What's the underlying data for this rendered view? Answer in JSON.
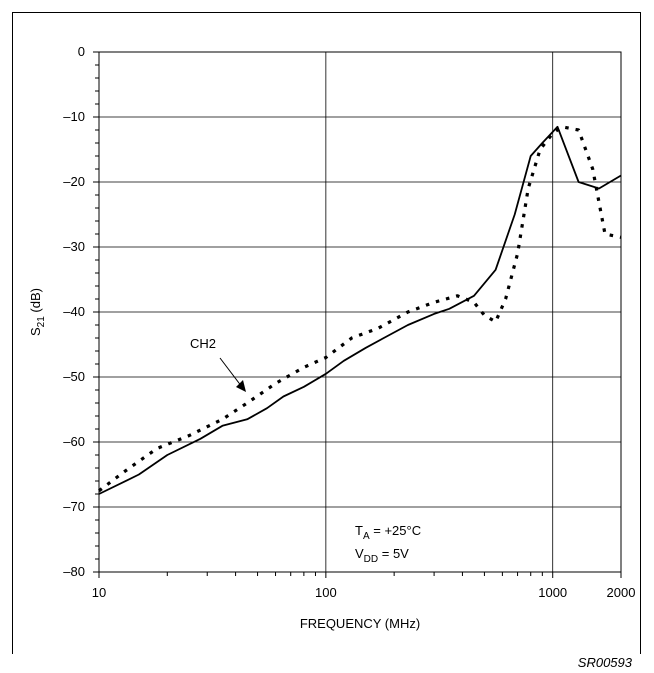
{
  "figure_id": "SR00593",
  "chart_data": {
    "type": "line",
    "xlabel": "FREQUENCY (MHz)",
    "ylabel_main": "S",
    "ylabel_sub": "21",
    "ylabel_suffix": " (dB)",
    "xscale": "log",
    "xlim": [
      10,
      2000
    ],
    "ylim": [
      -80,
      0
    ],
    "grid": true,
    "x_ticks": [
      {
        "value": 10,
        "label": "10"
      },
      {
        "value": 100,
        "label": "100"
      },
      {
        "value": 1000,
        "label": "1000"
      },
      {
        "value": 2000,
        "label": "2000"
      }
    ],
    "y_ticks": [
      {
        "value": 0,
        "label": "0"
      },
      {
        "value": -10,
        "label": "–10"
      },
      {
        "value": -20,
        "label": "–20"
      },
      {
        "value": -30,
        "label": "–30"
      },
      {
        "value": -40,
        "label": "–40"
      },
      {
        "value": -50,
        "label": "–50"
      },
      {
        "value": -60,
        "label": "–60"
      },
      {
        "value": -70,
        "label": "–70"
      },
      {
        "value": -80,
        "label": "–80"
      }
    ],
    "series": [
      {
        "style": "solid",
        "x": [
          10,
          15,
          20,
          28,
          35,
          45,
          55,
          65,
          80,
          100,
          120,
          150,
          180,
          230,
          300,
          350,
          450,
          560,
          680,
          800,
          900,
          1050,
          1300,
          1600,
          2000
        ],
        "y": [
          -68,
          -65,
          -62,
          -59.5,
          -57.5,
          -56.5,
          -54.8,
          -53,
          -51.5,
          -49.5,
          -47.5,
          -45.5,
          -44,
          -42,
          -40.3,
          -39.5,
          -37.5,
          -33.5,
          -25,
          -16,
          -14,
          -11.5,
          -20,
          -21,
          -19
        ]
      },
      {
        "style": "dotted",
        "name": "CH2",
        "x": [
          10,
          13,
          18,
          25,
          35,
          45,
          60,
          80,
          100,
          130,
          170,
          230,
          300,
          380,
          450,
          500,
          560,
          620,
          700,
          780,
          880,
          1000,
          1100,
          1300,
          1500,
          1700,
          2000
        ],
        "y": [
          -67.5,
          -64.5,
          -61,
          -59,
          -56.5,
          -54,
          -51,
          -48.5,
          -47,
          -44,
          -42.5,
          -40,
          -38.5,
          -37.5,
          -38.5,
          -40.5,
          -41.5,
          -38,
          -31,
          -21,
          -15,
          -12.5,
          -11.5,
          -12,
          -18,
          -28,
          -28.5
        ]
      }
    ],
    "annotations": [
      {
        "text": "CH2"
      },
      {
        "main": "T",
        "sub": "A",
        "rest": " = +25°C"
      },
      {
        "main": "V",
        "sub": "DD",
        "rest": " = 5V"
      }
    ]
  }
}
